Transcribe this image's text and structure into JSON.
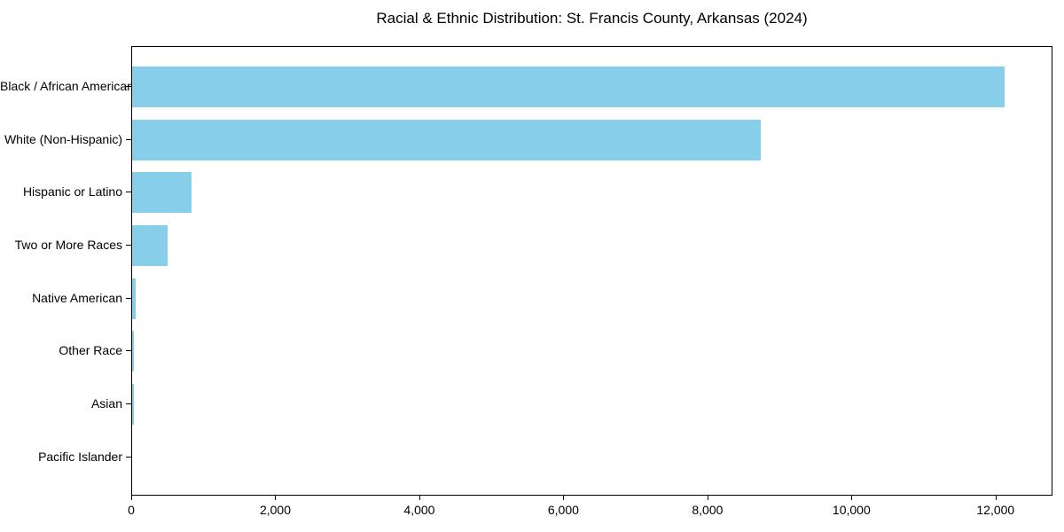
{
  "figure": {
    "background": "#ffffff"
  },
  "chart_data": {
    "type": "bar",
    "orientation": "horizontal",
    "title": "Racial & Ethnic Distribution: St. Francis County, Arkansas (2024)",
    "categories": [
      "Black / African American",
      "White (Non-Hispanic)",
      "Hispanic or Latino",
      "Two or More Races",
      "Native American",
      "Other Race",
      "Asian",
      "Pacific Islander"
    ],
    "values": [
      12140,
      8750,
      830,
      490,
      50,
      30,
      27,
      0
    ],
    "xlabel": "",
    "ylabel": "",
    "xlim": [
      0,
      12790
    ],
    "xticks": [
      0,
      2000,
      4000,
      6000,
      8000,
      10000,
      12000
    ],
    "xtick_labels": [
      "0",
      "2,000",
      "4,000",
      "6,000",
      "8,000",
      "10,000",
      "12,000"
    ],
    "bar_color": "#87CEEB",
    "text_color": "#000000",
    "spine_color": "#000000",
    "grid": false,
    "legend_position": "none"
  }
}
